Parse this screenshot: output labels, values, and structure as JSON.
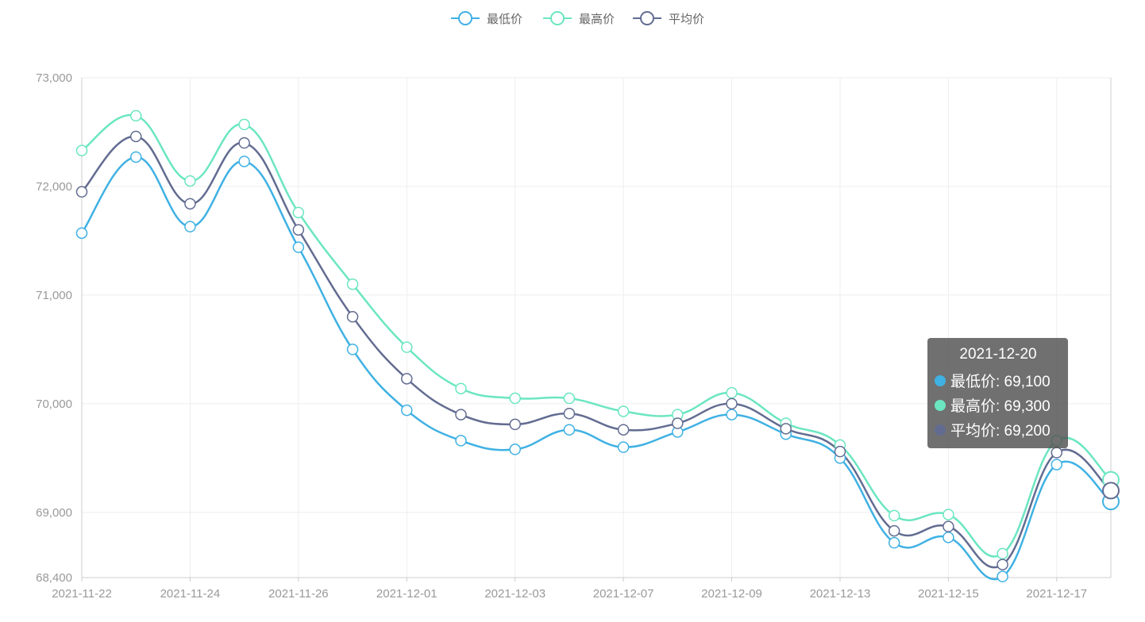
{
  "chart_data": {
    "type": "line",
    "smooth": true,
    "title": "",
    "xlabel": "",
    "ylabel": "",
    "ylim": [
      68400,
      73000
    ],
    "y_ticks": [
      68400,
      69000,
      70000,
      71000,
      72000,
      73000
    ],
    "y_tick_labels": [
      "68,400",
      "69,000",
      "70,000",
      "71,000",
      "72,000",
      "73,000"
    ],
    "grid": true,
    "legend_position": "top-center",
    "x": [
      "2021-11-22",
      "2021-11-23",
      "2021-11-24",
      "2021-11-25",
      "2021-11-26",
      "2021-11-29",
      "2021-12-01",
      "2021-12-02",
      "2021-12-03",
      "2021-12-06",
      "2021-12-07",
      "2021-12-08",
      "2021-12-09",
      "2021-12-10",
      "2021-12-13",
      "2021-12-14",
      "2021-12-15",
      "2021-12-16",
      "2021-12-17",
      "2021-12-20"
    ],
    "x_tick_labels": [
      "2021-11-22",
      "2021-11-24",
      "2021-11-26",
      "2021-12-01",
      "2021-12-03",
      "2021-12-07",
      "2021-12-09",
      "2021-12-13",
      "2021-12-15",
      "2021-12-17"
    ],
    "series": [
      {
        "name": "最低价",
        "color": "#3fb1e3",
        "values": [
          71570,
          72270,
          71630,
          72230,
          71440,
          70500,
          69940,
          69660,
          69580,
          69760,
          69600,
          69740,
          69900,
          69720,
          69500,
          68720,
          68770,
          68410,
          69440,
          69100
        ]
      },
      {
        "name": "最高价",
        "color": "#6be6c1",
        "values": [
          72330,
          72650,
          72050,
          72570,
          71760,
          71100,
          70520,
          70140,
          70050,
          70050,
          69930,
          69900,
          70100,
          69820,
          69620,
          68970,
          68980,
          68620,
          69660,
          69300
        ]
      },
      {
        "name": "平均价",
        "color": "#626c91",
        "values": [
          71950,
          72460,
          71840,
          72400,
          71600,
          70800,
          70230,
          69900,
          69810,
          69910,
          69760,
          69820,
          70000,
          69770,
          69560,
          68830,
          68870,
          68520,
          69550,
          69200
        ]
      }
    ],
    "tooltip": {
      "title": "2021-12-20",
      "rows": [
        {
          "label": "最低价: 69,100",
          "color": "#3fb1e3"
        },
        {
          "label": "最高价: 69,300",
          "color": "#6be6c1"
        },
        {
          "label": "平均价: 69,200",
          "color": "#626c91"
        }
      ]
    }
  }
}
